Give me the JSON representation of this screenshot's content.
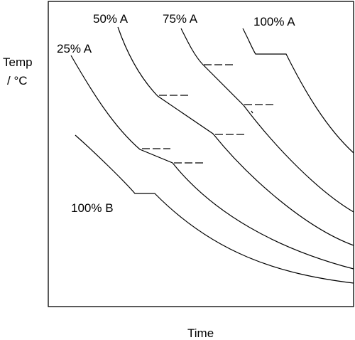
{
  "axes": {
    "ylabel_line1": "Temp",
    "ylabel_line2": "/ °C",
    "xlabel": "Time"
  },
  "curves": [
    {
      "label": "25% A"
    },
    {
      "label": "50% A"
    },
    {
      "label": "75% A"
    },
    {
      "label": "100% A"
    },
    {
      "label": "100% B"
    }
  ]
}
